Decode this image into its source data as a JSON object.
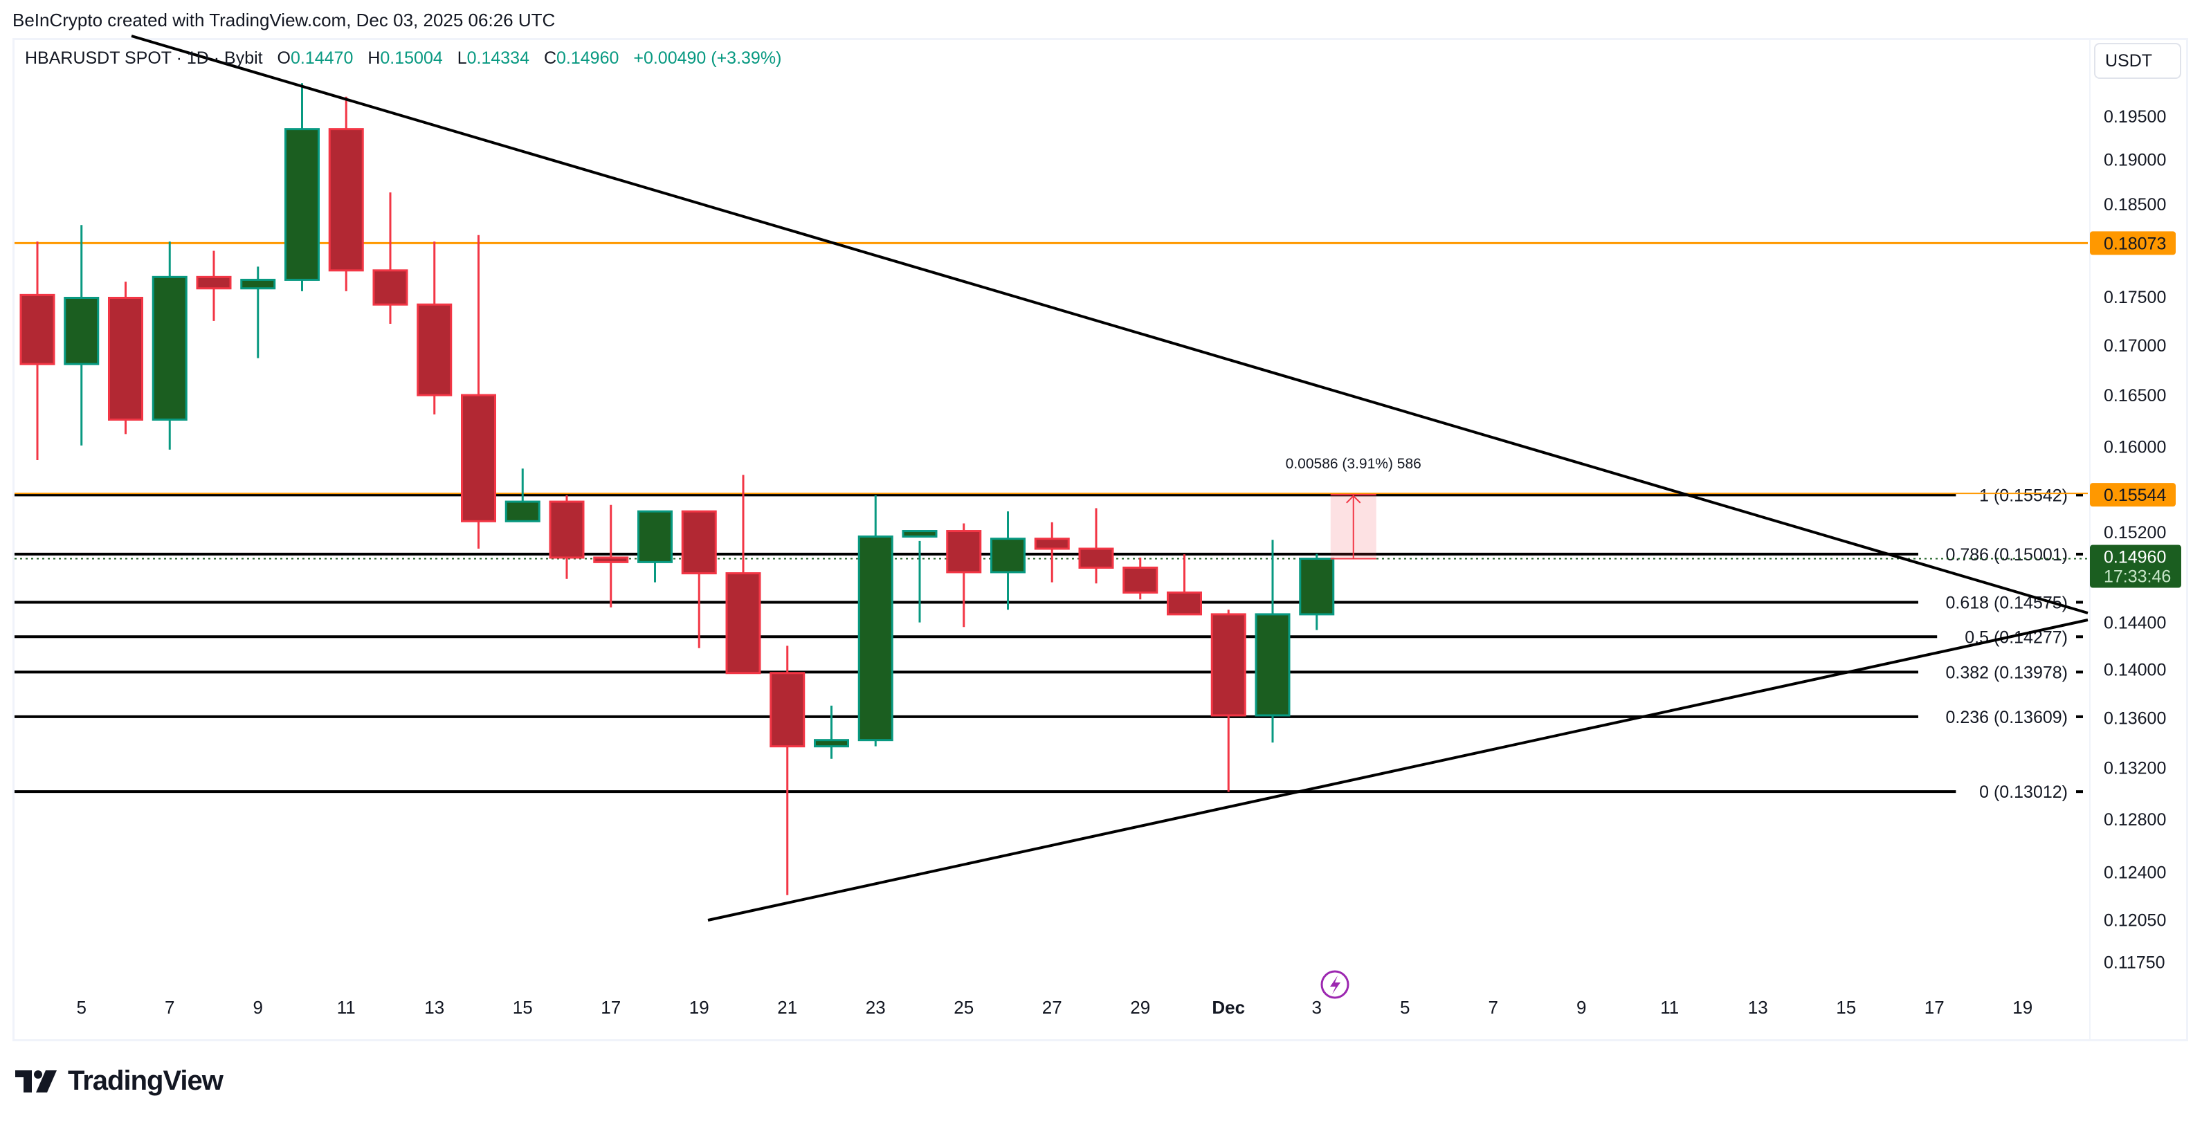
{
  "header": {
    "attribution": "BeInCrypto created with TradingView.com, Dec 03, 2025 06:26 UTC"
  },
  "legend": {
    "symbol": "HBARUSDT SPOT · 1D · Bybit",
    "open_label": "O",
    "open": "0.14470",
    "high_label": "H",
    "high": "0.15004",
    "low_label": "L",
    "low": "0.14334",
    "close_label": "C",
    "close": "0.14960",
    "change": "+0.00490 (+3.39%)"
  },
  "currency_button": {
    "label": "USDT"
  },
  "price_axis": {
    "ticks": [
      "0.19500",
      "0.19000",
      "0.18500",
      "0.17500",
      "0.17000",
      "0.16500",
      "0.16000",
      "0.15200",
      "0.14400",
      "0.14000",
      "0.13600",
      "0.13200",
      "0.12800",
      "0.12400",
      "0.12050",
      "0.11750"
    ],
    "badges": [
      {
        "label": "0.18073",
        "color": "#ff9800",
        "text_color": "#131722"
      },
      {
        "label": "0.15544",
        "color": "#ff9800",
        "text_color": "#131722"
      },
      {
        "label": "0.14960",
        "sub": "17:33:46",
        "color": "#1b5e20",
        "text_color": "#ffffff"
      }
    ]
  },
  "time_axis": {
    "labels": [
      "5",
      "7",
      "9",
      "11",
      "13",
      "15",
      "17",
      "19",
      "21",
      "23",
      "25",
      "27",
      "29",
      "Dec",
      "3",
      "5",
      "7",
      "9",
      "11",
      "13",
      "15",
      "17",
      "19"
    ]
  },
  "drawings": {
    "horizontal_line": {
      "price": 0.18073,
      "color": "#ff9800"
    },
    "fib_levels": [
      {
        "label": "1 (0.15542)",
        "ratio": 1,
        "price": 0.15542
      },
      {
        "label": "0.786 (0.15001)",
        "ratio": 0.786,
        "price": 0.15001
      },
      {
        "label": "0.618 (0.14575)",
        "ratio": 0.618,
        "price": 0.14575
      },
      {
        "label": "0.5 (0.14277)",
        "ratio": 0.5,
        "price": 0.14277
      },
      {
        "label": "0.382 (0.13978)",
        "ratio": 0.382,
        "price": 0.13978
      },
      {
        "label": "0.236 (0.13609)",
        "ratio": 0.236,
        "price": 0.13609
      },
      {
        "label": "0 (0.13012)",
        "ratio": 0,
        "price": 0.13012
      }
    ],
    "measure": {
      "label": "0.00586 (3.91%) 586",
      "from": 0.1496,
      "to": 0.15546
    },
    "trendlines": [
      {
        "name": "descending-resistance"
      },
      {
        "name": "ascending-support"
      }
    ]
  },
  "colors": {
    "up_body": "#1b5e20",
    "up_border": "#089981",
    "down_body": "#b22833",
    "down_border": "#f23645",
    "orange": "#ff9800"
  },
  "footer": {
    "brand": "TradingView"
  },
  "chart_data": {
    "type": "candlestick",
    "title": "HBARUSDT SPOT · 1D · Bybit",
    "xlabel": "",
    "ylabel": "USDT",
    "ylim": [
      0.1155,
      0.1985
    ],
    "y_scale": "log",
    "grid": false,
    "categories": [
      "Nov 4",
      "Nov 5",
      "Nov 6",
      "Nov 7",
      "Nov 8",
      "Nov 9",
      "Nov 10",
      "Nov 11",
      "Nov 12",
      "Nov 13",
      "Nov 14",
      "Nov 15",
      "Nov 16",
      "Nov 17",
      "Nov 18",
      "Nov 19",
      "Nov 20",
      "Nov 21",
      "Nov 22",
      "Nov 23",
      "Nov 24",
      "Nov 25",
      "Nov 26",
      "Nov 27",
      "Nov 28",
      "Nov 29",
      "Nov 30",
      "Dec 1",
      "Dec 2",
      "Dec 3"
    ],
    "series": [
      {
        "name": "open",
        "values": [
          0.1752,
          0.1681,
          0.1749,
          0.1626,
          0.1771,
          0.1759,
          0.1768,
          0.1935,
          0.1778,
          0.1742,
          0.165,
          0.153,
          0.1548,
          0.1497,
          0.1493,
          0.1539,
          0.1483,
          0.1397,
          0.1337,
          0.1342,
          0.1516,
          0.1521,
          0.1484,
          0.1514,
          0.1505,
          0.1488,
          0.1466,
          0.1447,
          0.1362,
          0.1447
        ]
      },
      {
        "name": "high",
        "values": [
          0.1809,
          0.1827,
          0.1766,
          0.1809,
          0.1799,
          0.1782,
          0.1989,
          0.1973,
          0.1863,
          0.1809,
          0.1816,
          0.1579,
          0.1554,
          0.1545,
          0.1516,
          0.1539,
          0.1573,
          0.142,
          0.137,
          0.1554,
          0.1512,
          0.1528,
          0.1539,
          0.1529,
          0.1542,
          0.1497,
          0.15,
          0.1451,
          0.1513,
          0.15004
        ]
      },
      {
        "name": "low",
        "values": [
          0.1587,
          0.1601,
          0.1612,
          0.1597,
          0.1725,
          0.1687,
          0.1756,
          0.1756,
          0.1722,
          0.1631,
          0.1505,
          0.153,
          0.1478,
          0.1453,
          0.1475,
          0.1418,
          0.1402,
          0.1223,
          0.1327,
          0.1337,
          0.144,
          0.1436,
          0.1451,
          0.1475,
          0.1474,
          0.146,
          0.1457,
          0.1301,
          0.134,
          0.14334
        ]
      },
      {
        "name": "close",
        "values": [
          0.1681,
          0.1749,
          0.1626,
          0.1771,
          0.1759,
          0.1768,
          0.1935,
          0.1778,
          0.1742,
          0.165,
          0.153,
          0.1548,
          0.1497,
          0.1493,
          0.1539,
          0.1483,
          0.1397,
          0.1337,
          0.1342,
          0.1516,
          0.1521,
          0.1484,
          0.1514,
          0.1505,
          0.1488,
          0.1466,
          0.1447,
          0.1362,
          0.1447,
          0.1496
        ]
      }
    ],
    "annotations": [
      "Horizontal resistance 0.18073",
      "Fib retracement: 1 (0.15542), 0.786 (0.15001), 0.618 (0.14575), 0.5 (0.14277), 0.382 (0.13978), 0.236 (0.13609), 0 (0.13012)",
      "Measure: 0.00586 (3.91%) 586",
      "Symmetrical triangle: descending and ascending trendlines",
      "Last price 0.14960, countdown 17:33:46"
    ]
  }
}
